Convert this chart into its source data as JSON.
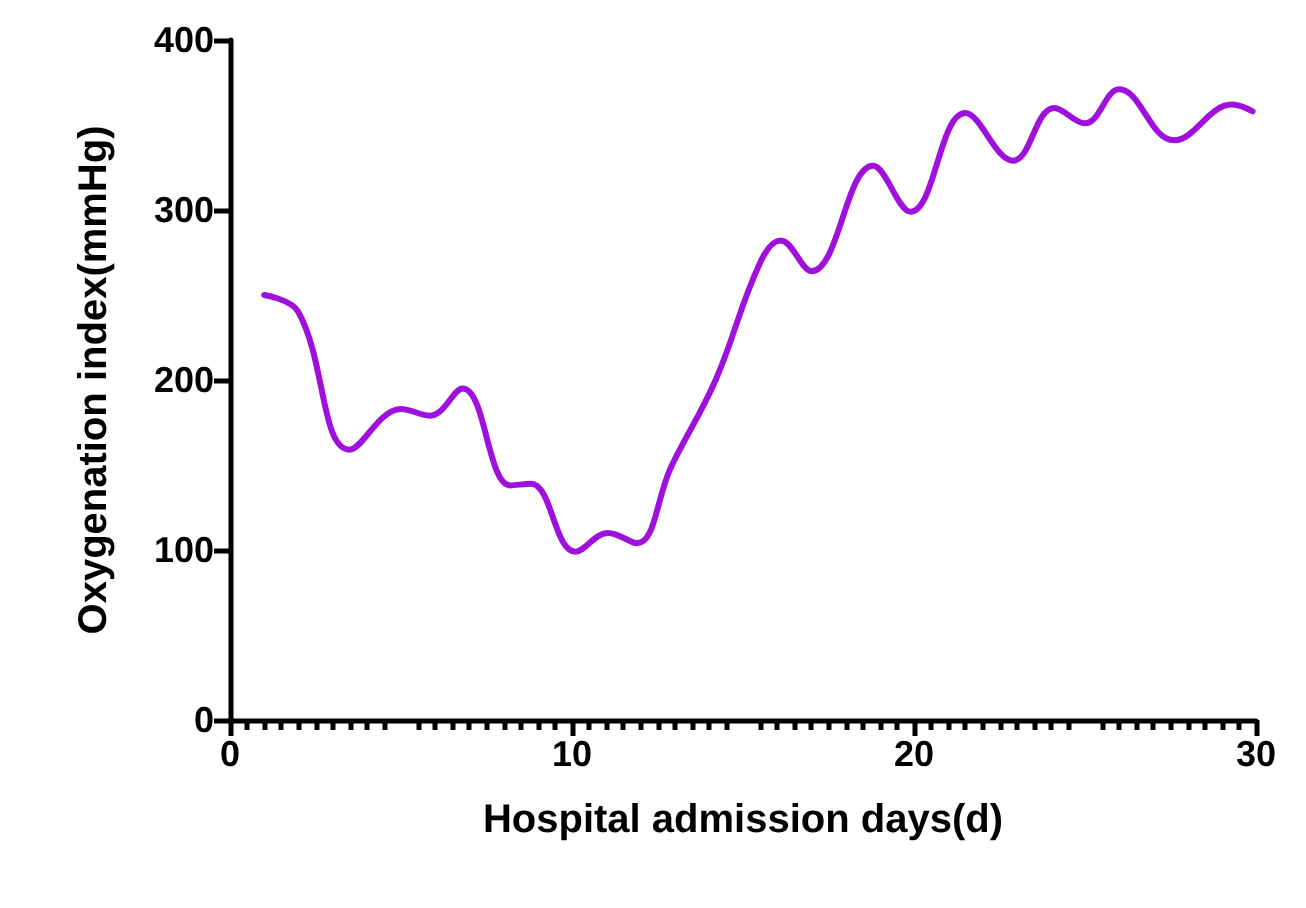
{
  "chart_data": {
    "type": "line",
    "xlabel": "Hospital admission days(d)",
    "ylabel": "Oxygenation index(mmHg)",
    "x": [
      1,
      2,
      3.5,
      5,
      5.85,
      6.8,
      8.2,
      8.8,
      10.1,
      11.05,
      11.9,
      12.9,
      14.2,
      15.5,
      16.1,
      17,
      18.8,
      19.9,
      21.5,
      22.9,
      24.1,
      25,
      26,
      27.6,
      29.3,
      29.9
    ],
    "series": [
      {
        "color": "#a010dd",
        "values": [
          250,
          240,
          159,
          183,
          179,
          195,
          138,
          139,
          99,
          110,
          104,
          149,
          200,
          269,
          282,
          264,
          326,
          299,
          357,
          329,
          360,
          351,
          371,
          341,
          362,
          358
        ]
      }
    ],
    "xlim": [
      0,
      30
    ],
    "xticks": [
      0,
      10,
      20,
      30
    ],
    "ylim": [
      0,
      400
    ],
    "yticks": [
      0,
      100,
      200,
      300,
      400
    ],
    "marker": "none",
    "line_style": "solid"
  }
}
